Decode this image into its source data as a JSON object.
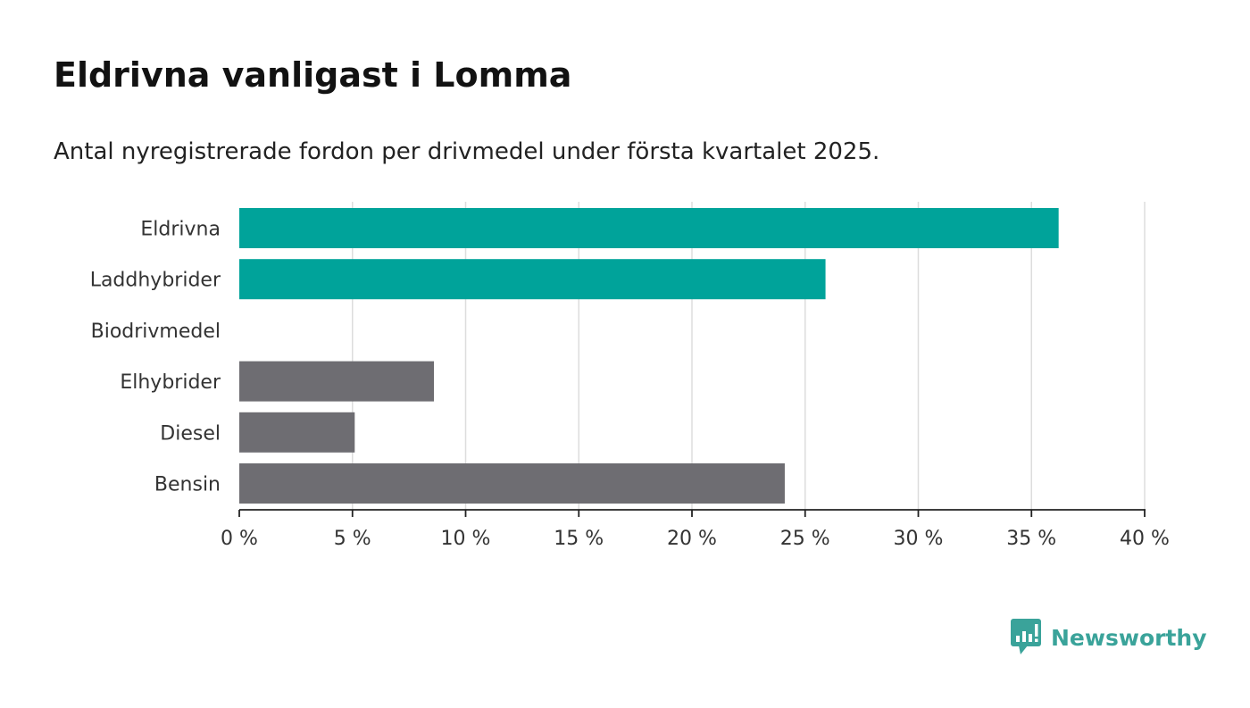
{
  "title": "Eldrivna vanligast i Lomma",
  "subtitle": "Antal nyregistrerade fordon per drivmedel under första kvartalet 2025.",
  "brand": {
    "name": "Newsworthy",
    "color": "#3aa39a",
    "icon": "newsworthy-logo-icon"
  },
  "chart_data": {
    "type": "bar",
    "orientation": "horizontal",
    "categories": [
      "Eldrivna",
      "Laddhybrider",
      "Biodrivmedel",
      "Elhybrider",
      "Diesel",
      "Bensin"
    ],
    "values": [
      36.2,
      25.9,
      0,
      8.6,
      5.1,
      24.1
    ],
    "colors": [
      "#00a39a",
      "#00a39a",
      "#6e6d72",
      "#6e6d72",
      "#6e6d72",
      "#6e6d72"
    ],
    "xlim": [
      0,
      40
    ],
    "ticks": [
      0,
      5,
      10,
      15,
      20,
      25,
      30,
      35,
      40
    ],
    "tick_labels": [
      "0 %",
      "5 %",
      "10 %",
      "15 %",
      "20 %",
      "25 %",
      "30 %",
      "35 %",
      "40 %"
    ],
    "grid": true,
    "xlabel": "",
    "ylabel": ""
  }
}
